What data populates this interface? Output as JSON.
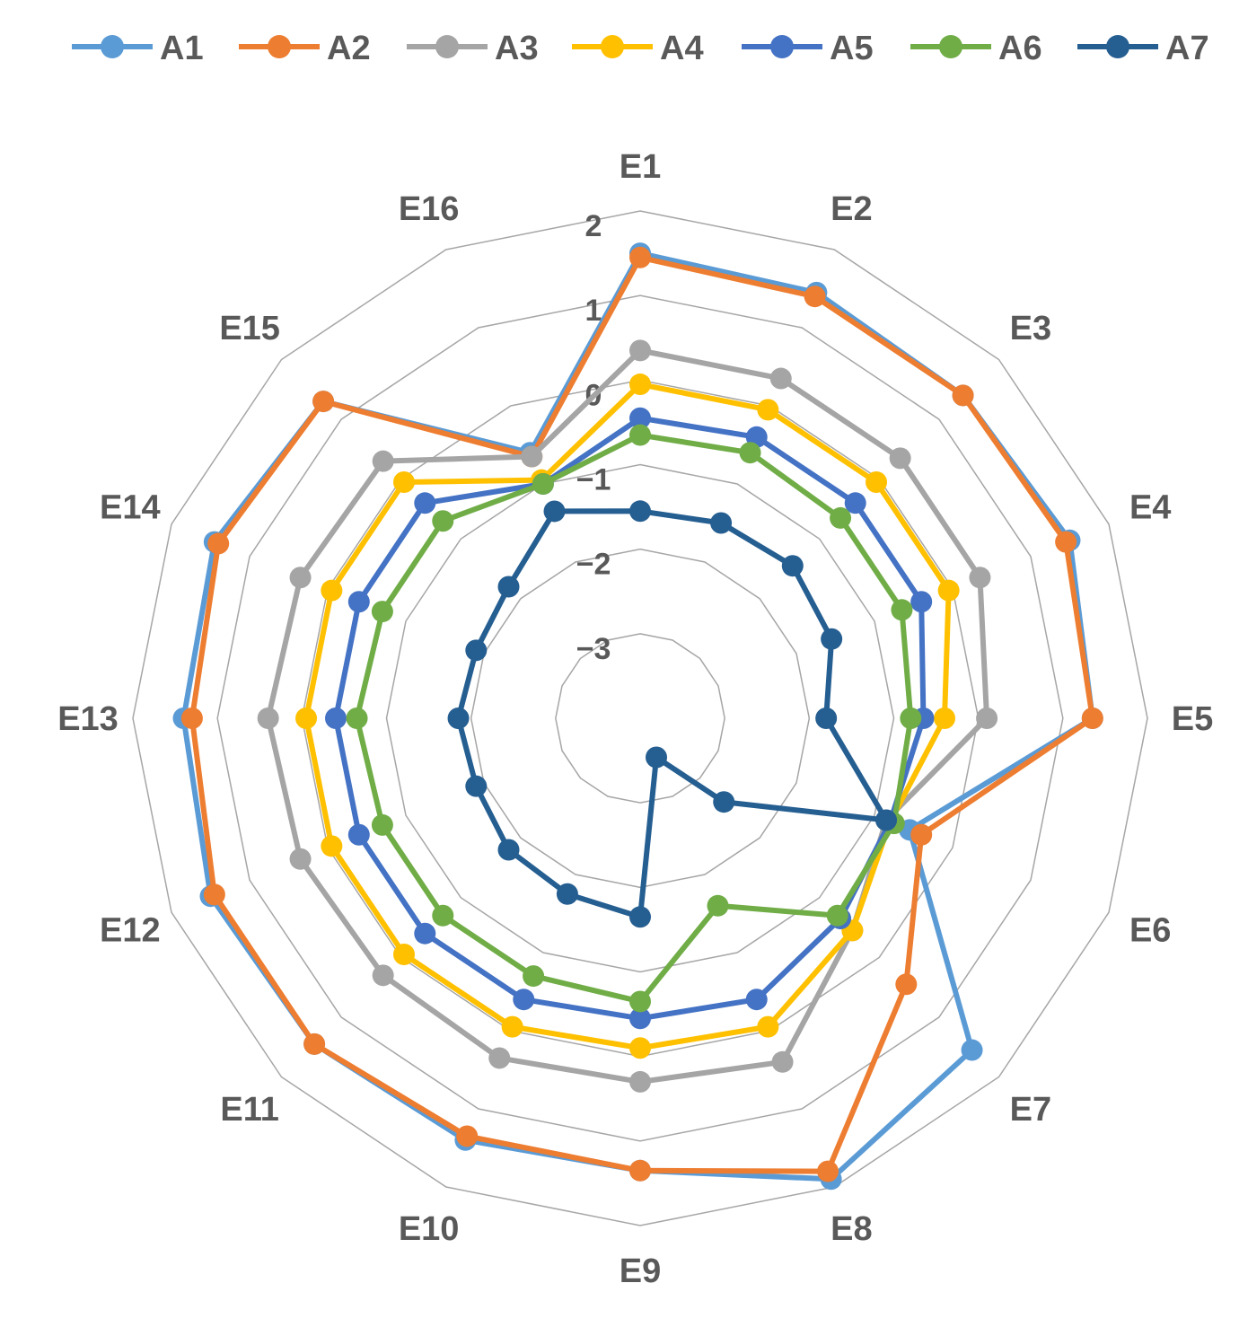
{
  "chart_data": {
    "type": "radar",
    "categories": [
      "E1",
      "E2",
      "E3",
      "E4",
      "E5",
      "E6",
      "E7",
      "E8",
      "E9",
      "E10",
      "E11",
      "E12",
      "E13",
      "E14",
      "E15",
      "E16"
    ],
    "r_ticks": [
      -3,
      -2,
      -1,
      0,
      1,
      2
    ],
    "r_tick_labels": [
      "−3",
      "−2",
      "−1",
      "0",
      "1",
      "2"
    ],
    "rlim": [
      -4,
      2
    ],
    "legend_position": "top",
    "series": [
      {
        "name": "A1",
        "color": "#5B9BD5",
        "values": [
          1.5,
          1.45,
          1.4,
          1.5,
          1.35,
          -0.55,
          1.55,
          1.9,
          1.35,
          1.4,
          1.45,
          1.5,
          1.4,
          1.45,
          1.3,
          -0.6
        ]
      },
      {
        "name": "A2",
        "color": "#ED7D31",
        "values": [
          1.45,
          1.4,
          1.4,
          1.45,
          1.35,
          -0.4,
          0.45,
          1.8,
          1.35,
          1.35,
          1.45,
          1.45,
          1.3,
          1.4,
          1.3,
          -0.65
        ]
      },
      {
        "name": "A3",
        "color": "#A5A5A5",
        "values": [
          0.35,
          0.35,
          0.35,
          0.35,
          0.1,
          -0.85,
          -0.45,
          0.4,
          0.3,
          0.35,
          0.3,
          0.35,
          0.4,
          0.35,
          0.3,
          -0.65
        ]
      },
      {
        "name": "A4",
        "color": "#FFC000",
        "values": [
          -0.05,
          -0.05,
          -0.05,
          -0.05,
          -0.4,
          -0.8,
          -0.45,
          -0.05,
          -0.1,
          -0.05,
          -0.05,
          -0.05,
          -0.05,
          -0.05,
          -0.05,
          -0.95
        ]
      },
      {
        "name": "A5",
        "color": "#4472C4",
        "values": [
          -0.45,
          -0.4,
          -0.4,
          -0.4,
          -0.65,
          -0.8,
          -0.65,
          -0.4,
          -0.45,
          -0.4,
          -0.4,
          -0.4,
          -0.4,
          -0.4,
          -0.4,
          -1.0
        ]
      },
      {
        "name": "A6",
        "color": "#70AD47",
        "values": [
          -0.65,
          -0.6,
          -0.65,
          -0.65,
          -0.8,
          -0.75,
          -0.7,
          -1.6,
          -0.65,
          -0.7,
          -0.7,
          -0.7,
          -0.65,
          -0.7,
          -0.7,
          -1.0
        ]
      },
      {
        "name": "A7",
        "color": "#255E91",
        "values": [
          -1.55,
          -1.5,
          -1.45,
          -1.55,
          -1.8,
          -0.85,
          -2.6,
          -3.5,
          -1.65,
          -1.75,
          -1.8,
          -1.9,
          -1.85,
          -1.9,
          -1.8,
          -1.35
        ]
      }
    ]
  }
}
